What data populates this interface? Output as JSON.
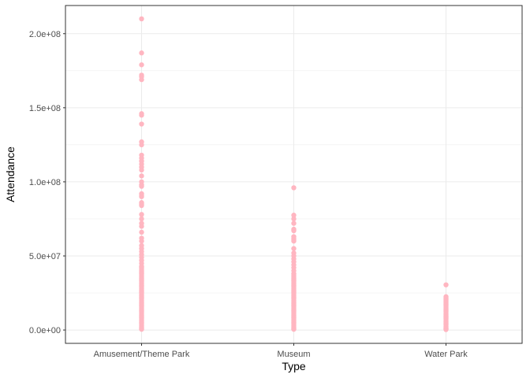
{
  "chart_data": {
    "type": "scatter",
    "xlabel": "Type",
    "ylabel": "Attendance",
    "categories": [
      "Amusement/Theme Park",
      "Museum",
      "Water Park"
    ],
    "ylim": [
      -9000000,
      219000000
    ],
    "yticks": [
      0,
      50000000,
      100000000,
      150000000,
      200000000
    ],
    "ytick_labels": [
      "0.0e+00",
      "5.0e+07",
      "1.0e+08",
      "1.5e+08",
      "2.0e+08"
    ],
    "grid": true,
    "point_color": "#FFB6C1",
    "points": [
      {
        "category": "Amusement/Theme Park",
        "values": [
          210000000,
          187000000,
          179000000,
          172000000,
          171000000,
          169000000,
          146000000,
          145000000,
          139000000,
          127000000,
          125000000,
          118000000,
          116000000,
          114000000,
          112000000,
          110000000,
          108000000,
          104000000,
          100000000,
          98000000,
          97000000,
          92000000,
          91000000,
          90000000,
          86000000,
          85000000,
          84000000,
          78000000,
          75000000,
          72000000,
          70000000,
          66000000,
          62000000,
          60000000,
          57000000,
          55000000,
          53000000,
          51000000,
          49000000,
          47000000,
          45000000,
          43000000,
          42000000,
          41000000,
          40000000,
          39000000,
          38000000,
          37000000,
          36000000,
          35000000,
          34000000,
          33000000,
          32000000,
          31000000,
          30000000,
          29000000,
          28000000,
          27000000,
          26000000,
          25000000,
          24000000,
          23000000,
          22000000,
          21000000,
          20000000,
          19000000,
          18000000,
          17000000,
          16000000,
          15000000,
          14000000,
          13000000,
          12000000,
          11000000,
          10000000,
          9000000,
          8000000,
          7000000,
          6000000,
          5000000,
          4000000,
          3000000,
          2000000,
          1000000,
          500000
        ]
      },
      {
        "category": "Museum",
        "values": [
          96000000,
          77500000,
          75000000,
          72000000,
          68000000,
          67000000,
          63000000,
          62000000,
          61000000,
          60000000,
          55000000,
          52000000,
          50000000,
          48000000,
          46000000,
          44000000,
          42000000,
          40000000,
          38000000,
          37000000,
          36000000,
          35000000,
          34000000,
          33000000,
          32000000,
          31000000,
          30000000,
          29000000,
          28000000,
          27000000,
          26000000,
          25000000,
          24000000,
          23000000,
          22000000,
          21000000,
          20000000,
          19000000,
          18000000,
          17000000,
          16000000,
          15000000,
          14000000,
          13000000,
          12000000,
          11000000,
          10000000,
          9000000,
          8000000,
          7000000,
          6000000,
          5000000,
          4000000,
          3000000,
          2000000,
          1000000,
          500000
        ]
      },
      {
        "category": "Water Park",
        "values": [
          30500000,
          22500000,
          21500000,
          20500000,
          19500000,
          18500000,
          17500000,
          16500000,
          15500000,
          14500000,
          13500000,
          12500000,
          11500000,
          10500000,
          9500000,
          8500000,
          7500000,
          6500000,
          5500000,
          4500000,
          3500000,
          2500000,
          1500000,
          800000,
          300000
        ]
      }
    ]
  }
}
